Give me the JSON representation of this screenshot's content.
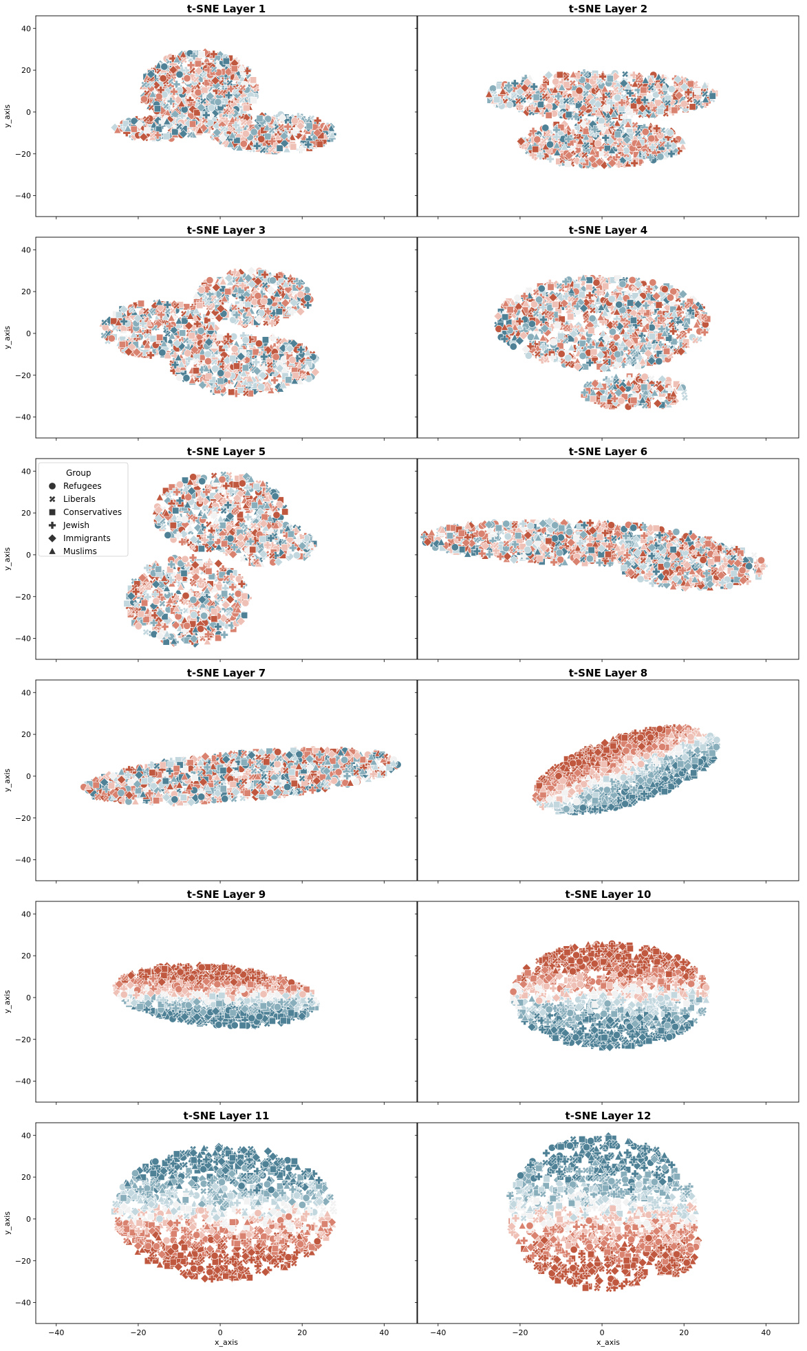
{
  "figure": {
    "background": "#ffffff",
    "palette": {
      "red_dark": "#c0583f",
      "red_mid": "#d9826f",
      "red_light": "#efc0b5",
      "neutral": "#f2f2f2",
      "blue_light": "#c3d7df",
      "blue_mid": "#88adbb",
      "blue_dark": "#4e8196"
    },
    "shared_axes": {
      "xlabel": "x_axis",
      "ylabel": "y_axis",
      "xlim": [
        -45,
        48
      ],
      "ylim": [
        -50,
        46
      ],
      "xticks": [
        -40,
        -20,
        0,
        20,
        40
      ],
      "yticks": [
        -40,
        -20,
        0,
        20,
        40
      ],
      "grid": false
    },
    "legend": {
      "title": "Group",
      "placement": "upper-left of t-SNE Layer 5",
      "entries": [
        {
          "label": "Refugees",
          "marker": "circle"
        },
        {
          "label": "Liberals",
          "marker": "x"
        },
        {
          "label": "Conservatives",
          "marker": "square"
        },
        {
          "label": "Jewish",
          "marker": "plus"
        },
        {
          "label": "Immigrants",
          "marker": "diamond"
        },
        {
          "label": "Muslims",
          "marker": "triangle"
        }
      ]
    }
  },
  "chart_data": [
    {
      "type": "scatter",
      "title": "t-SNE Layer 1",
      "color_mode": "mixed",
      "seed": 11,
      "blobs": [
        {
          "cx": -5,
          "cy": 10,
          "rx": 14,
          "ry": 19,
          "rot": 0
        },
        {
          "cx": 13,
          "cy": -10,
          "rx": 15,
          "ry": 9,
          "rot": 0
        },
        {
          "cx": -15,
          "cy": -8,
          "rx": 11,
          "ry": 5,
          "rot": 0
        }
      ]
    },
    {
      "type": "scatter",
      "title": "t-SNE Layer 2",
      "color_mode": "mixed",
      "seed": 22,
      "blobs": [
        {
          "cx": 0,
          "cy": 8,
          "rx": 28,
          "ry": 11,
          "rot": 0
        },
        {
          "cx": 0,
          "cy": -15,
          "rx": 20,
          "ry": 11,
          "rot": 0
        }
      ]
    },
    {
      "type": "scatter",
      "title": "t-SNE Layer 3",
      "color_mode": "mixed",
      "seed": 33,
      "blobs": [
        {
          "cx": -15,
          "cy": 2,
          "rx": 14,
          "ry": 13,
          "rot": 0
        },
        {
          "cx": 8,
          "cy": 17,
          "rx": 14,
          "ry": 13,
          "rot": 0
        },
        {
          "cx": 6,
          "cy": -15,
          "rx": 18,
          "ry": 14,
          "rot": 0
        }
      ]
    },
    {
      "type": "scatter",
      "title": "t-SNE Layer 4",
      "color_mode": "mixed",
      "seed": 44,
      "blobs": [
        {
          "cx": 0,
          "cy": 5,
          "rx": 26,
          "ry": 22,
          "rot": 0
        },
        {
          "cx": 8,
          "cy": -28,
          "rx": 13,
          "ry": 8,
          "rot": 0
        }
      ]
    },
    {
      "type": "scatter",
      "title": "t-SNE Layer 5",
      "color_mode": "mixed",
      "seed": 55,
      "blobs": [
        {
          "cx": 0,
          "cy": 20,
          "rx": 16,
          "ry": 19,
          "rot": 0
        },
        {
          "cx": 12,
          "cy": 5,
          "rx": 11,
          "ry": 10,
          "rot": 0
        },
        {
          "cx": -8,
          "cy": -22,
          "rx": 15,
          "ry": 21,
          "rot": 0
        }
      ]
    },
    {
      "type": "scatter",
      "title": "t-SNE Layer 6",
      "color_mode": "mixed",
      "seed": 66,
      "blobs": [
        {
          "cx": -8,
          "cy": 6,
          "rx": 36,
          "ry": 10,
          "rot": -3
        },
        {
          "cx": 22,
          "cy": -5,
          "rx": 18,
          "ry": 11,
          "rot": -5
        }
      ]
    },
    {
      "type": "scatter",
      "title": "t-SNE Layer 7",
      "color_mode": "mixed",
      "seed": 77,
      "blobs": [
        {
          "cx": 5,
          "cy": 0,
          "rx": 39,
          "ry": 11,
          "rot": 10
        }
      ]
    },
    {
      "type": "scatter",
      "title": "t-SNE Layer 8",
      "color_mode": "diag",
      "seed": 88,
      "blobs": [
        {
          "cx": 6,
          "cy": 3,
          "rx": 27,
          "ry": 14,
          "rot": 40
        }
      ]
    },
    {
      "type": "scatter",
      "title": "t-SNE Layer 9",
      "color_mode": "vgrad",
      "seed": 99,
      "blobs": [
        {
          "cx": -1,
          "cy": 1,
          "rx": 25,
          "ry": 14,
          "rot": -12
        }
      ]
    },
    {
      "type": "scatter",
      "title": "t-SNE Layer 10",
      "color_mode": "vgrad",
      "seed": 110,
      "blobs": [
        {
          "cx": 2,
          "cy": 1,
          "rx": 24,
          "ry": 25,
          "rot": 0
        }
      ]
    },
    {
      "type": "scatter",
      "title": "t-SNE Layer 11",
      "color_mode": "vgrad_inv",
      "seed": 121,
      "blobs": [
        {
          "cx": 1,
          "cy": 3,
          "rx": 27,
          "ry": 32,
          "rot": 0
        }
      ]
    },
    {
      "type": "scatter",
      "title": "t-SNE Layer 12",
      "color_mode": "vgrad_inv",
      "seed": 132,
      "blobs": [
        {
          "cx": 0,
          "cy": 3,
          "rx": 23,
          "ry": 37,
          "rot": 0
        },
        {
          "cx": 17,
          "cy": -10,
          "rx": 7,
          "ry": 17,
          "rot": 0
        }
      ]
    }
  ]
}
